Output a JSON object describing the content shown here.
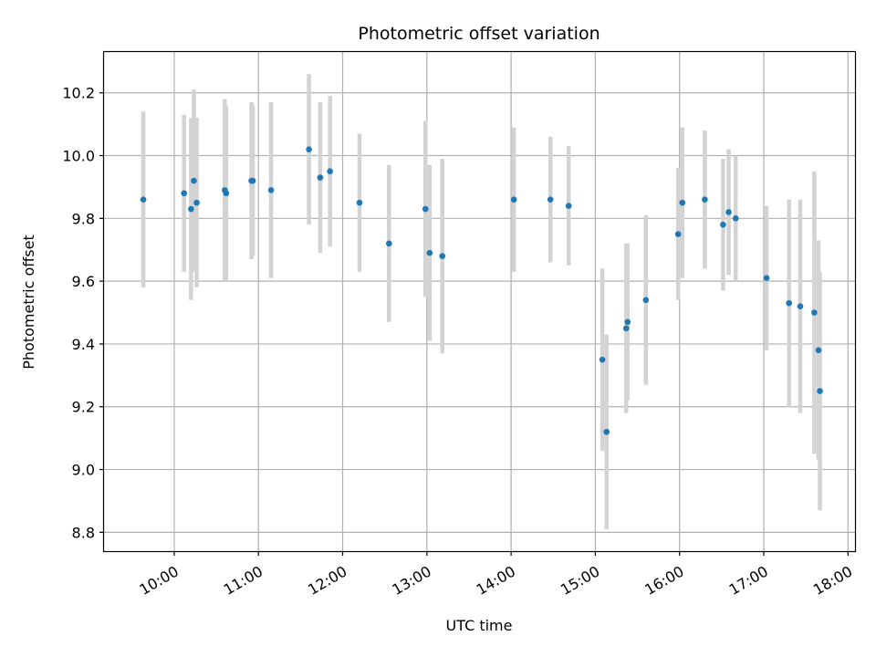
{
  "chart_data": {
    "type": "scatter",
    "title": "Photometric offset variation",
    "xlabel": "UTC time",
    "ylabel": "Photometric offset",
    "xlim": [
      "09:10",
      "18:05"
    ],
    "ylim": [
      8.74,
      10.33
    ],
    "grid": true,
    "x_ticks": [
      "10:00",
      "11:00",
      "12:00",
      "13:00",
      "14:00",
      "15:00",
      "16:00",
      "17:00",
      "18:00"
    ],
    "y_ticks": [
      "8.8",
      "9.0",
      "9.2",
      "9.4",
      "9.6",
      "9.8",
      "10.0",
      "10.2"
    ],
    "colors": {
      "point": "#1f77b4",
      "errorbar": "#d3d3d3",
      "grid": "#b0b0b0"
    },
    "points": [
      {
        "x": "09:38",
        "y": 9.86,
        "yerr": 0.28
      },
      {
        "x": "10:07",
        "y": 9.88,
        "yerr": 0.25
      },
      {
        "x": "10:12",
        "y": 9.83,
        "yerr": 0.29
      },
      {
        "x": "10:14",
        "y": 9.92,
        "yerr": 0.29
      },
      {
        "x": "10:16",
        "y": 9.85,
        "yerr": 0.27
      },
      {
        "x": "10:36",
        "y": 9.89,
        "yerr": 0.29
      },
      {
        "x": "10:37",
        "y": 9.88,
        "yerr": 0.28
      },
      {
        "x": "10:55",
        "y": 9.92,
        "yerr": 0.25
      },
      {
        "x": "10:56",
        "y": 9.92,
        "yerr": 0.24
      },
      {
        "x": "11:09",
        "y": 9.89,
        "yerr": 0.28
      },
      {
        "x": "11:36",
        "y": 10.02,
        "yerr": 0.24
      },
      {
        "x": "11:44",
        "y": 9.93,
        "yerr": 0.24
      },
      {
        "x": "11:51",
        "y": 9.95,
        "yerr": 0.24
      },
      {
        "x": "12:12",
        "y": 9.85,
        "yerr": 0.22
      },
      {
        "x": "12:33",
        "y": 9.72,
        "yerr": 0.25
      },
      {
        "x": "12:59",
        "y": 9.83,
        "yerr": 0.28
      },
      {
        "x": "13:02",
        "y": 9.69,
        "yerr": 0.28
      },
      {
        "x": "13:11",
        "y": 9.68,
        "yerr": 0.31
      },
      {
        "x": "14:02",
        "y": 9.86,
        "yerr": 0.23
      },
      {
        "x": "14:28",
        "y": 9.86,
        "yerr": 0.2
      },
      {
        "x": "14:41",
        "y": 9.84,
        "yerr": 0.19
      },
      {
        "x": "15:05",
        "y": 9.35,
        "yerr": 0.29
      },
      {
        "x": "15:08",
        "y": 9.12,
        "yerr": 0.31
      },
      {
        "x": "15:22",
        "y": 9.45,
        "yerr": 0.27
      },
      {
        "x": "15:23",
        "y": 9.47,
        "yerr": 0.25
      },
      {
        "x": "15:36",
        "y": 9.54,
        "yerr": 0.27
      },
      {
        "x": "15:59",
        "y": 9.75,
        "yerr": 0.21
      },
      {
        "x": "16:02",
        "y": 9.85,
        "yerr": 0.24
      },
      {
        "x": "16:18",
        "y": 9.86,
        "yerr": 0.22
      },
      {
        "x": "16:31",
        "y": 9.78,
        "yerr": 0.21
      },
      {
        "x": "16:35",
        "y": 9.82,
        "yerr": 0.2
      },
      {
        "x": "16:40",
        "y": 9.8,
        "yerr": 0.2
      },
      {
        "x": "17:02",
        "y": 9.61,
        "yerr": 0.23
      },
      {
        "x": "17:18",
        "y": 9.53,
        "yerr": 0.33
      },
      {
        "x": "17:26",
        "y": 9.52,
        "yerr": 0.34
      },
      {
        "x": "17:36",
        "y": 9.5,
        "yerr": 0.45
      },
      {
        "x": "17:39",
        "y": 9.38,
        "yerr": 0.35
      },
      {
        "x": "17:40",
        "y": 9.25,
        "yerr": 0.38
      }
    ]
  }
}
